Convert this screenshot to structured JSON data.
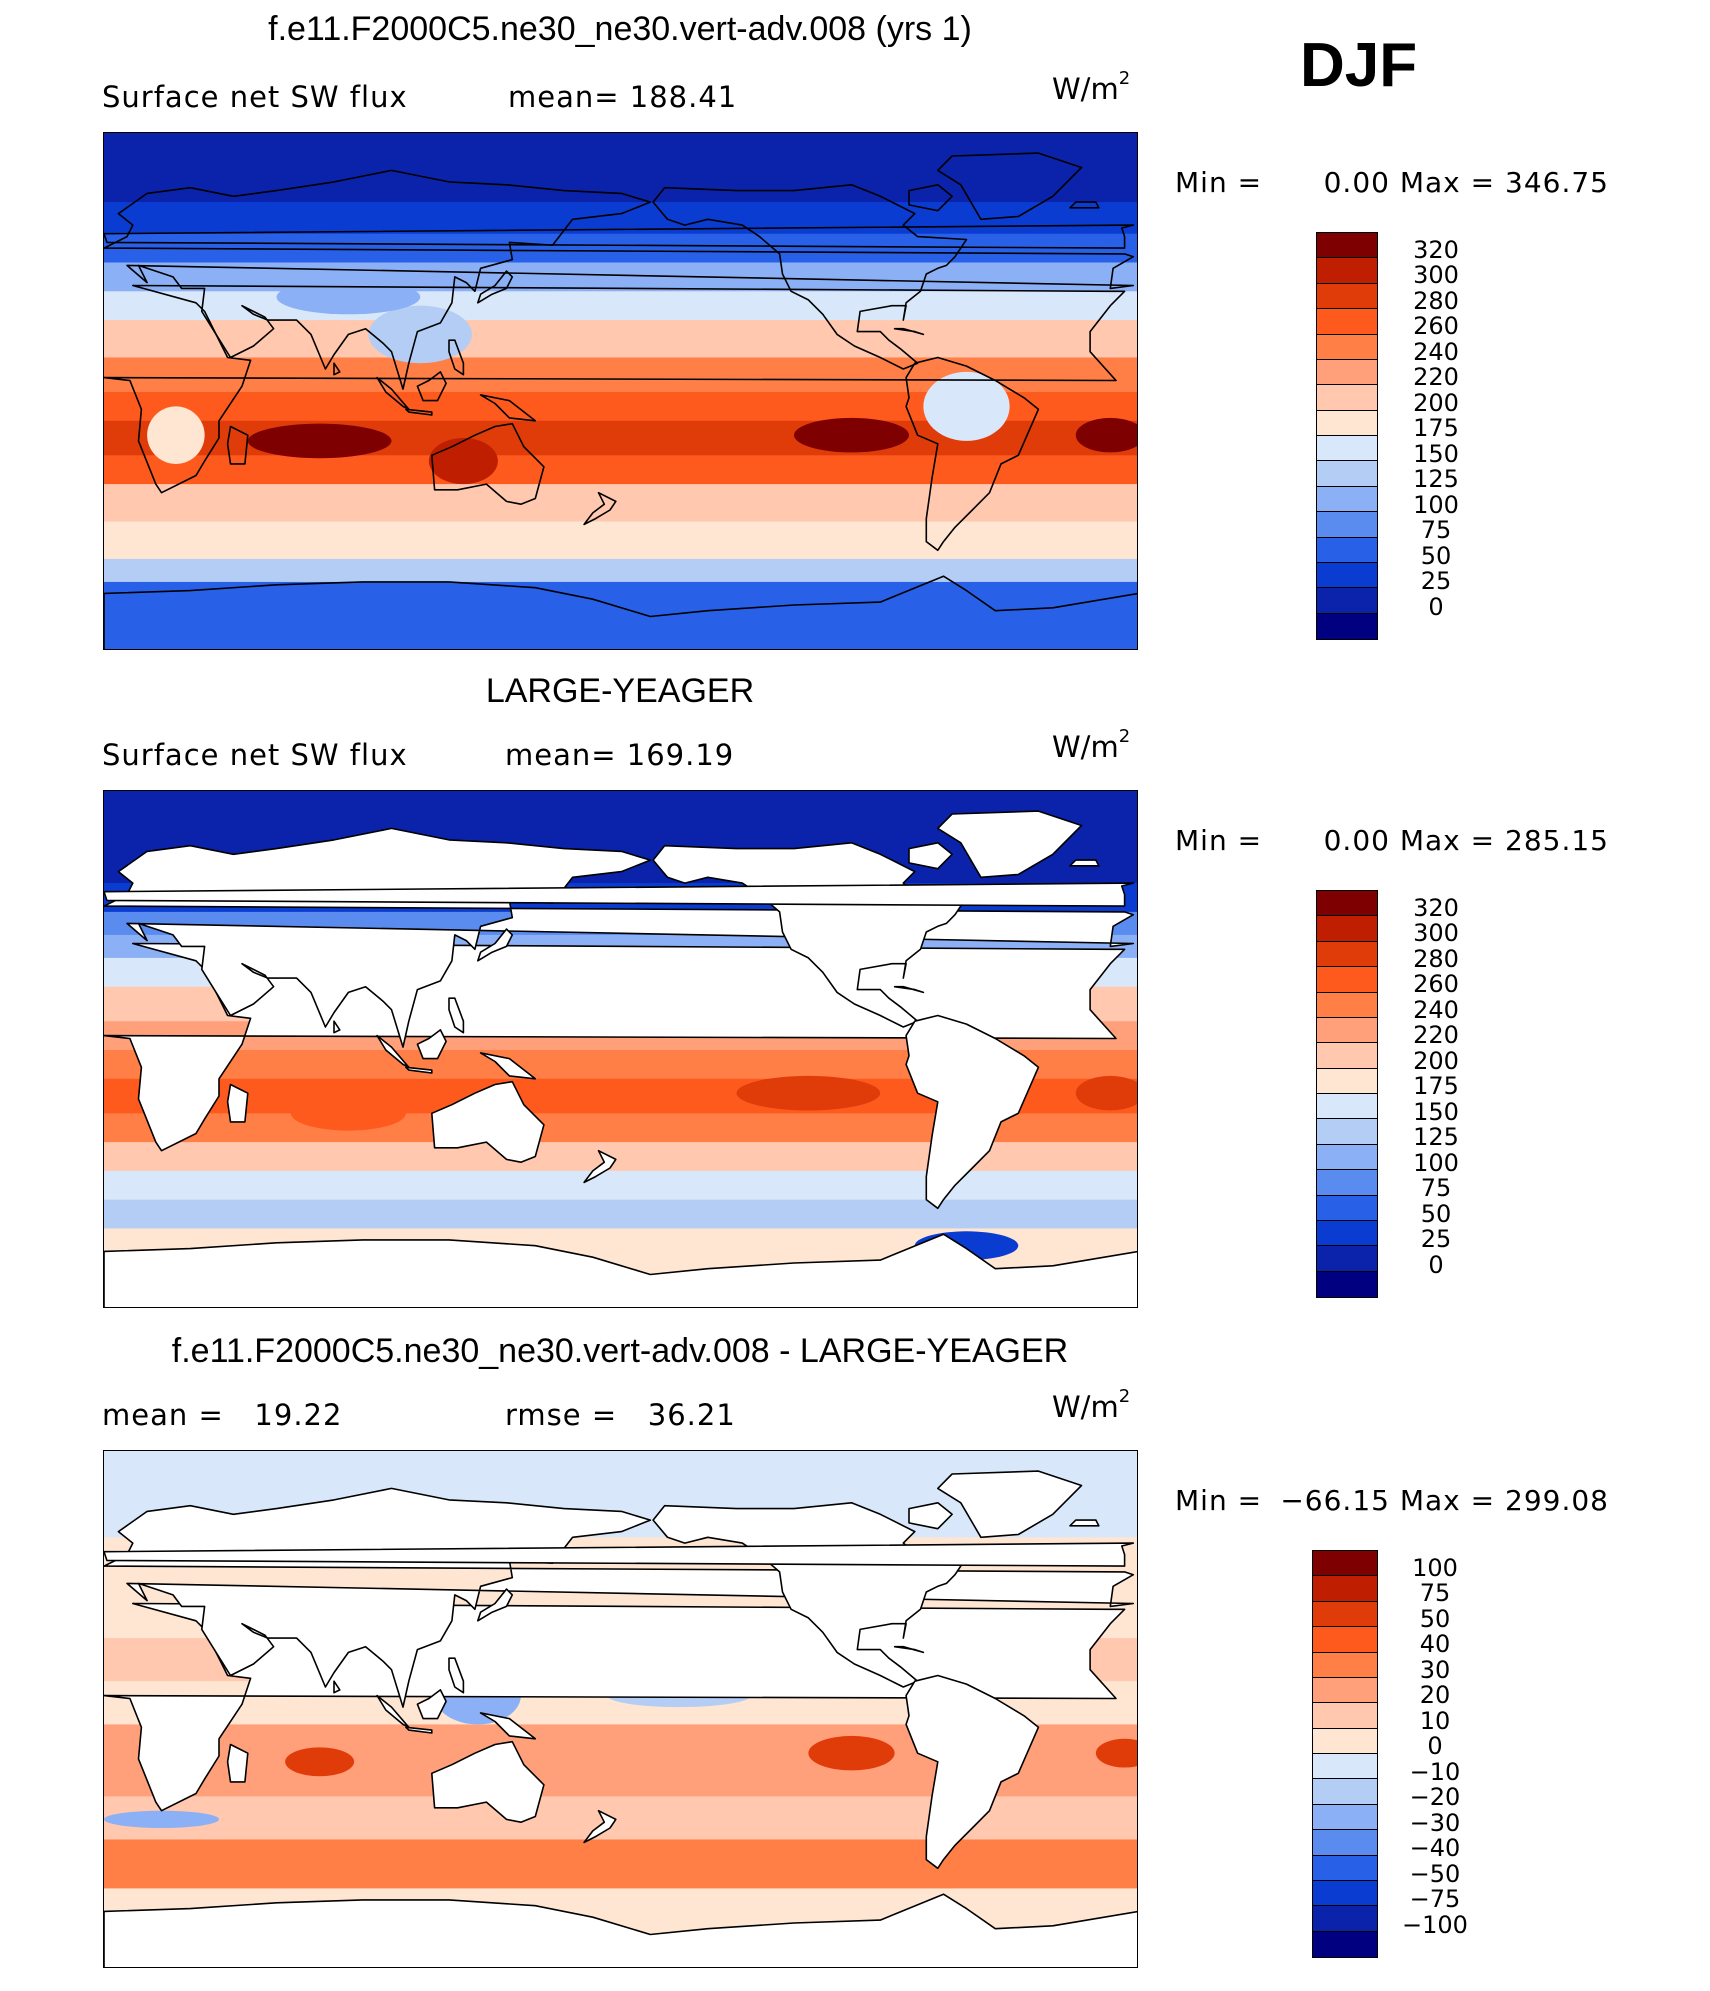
{
  "season": "DJF",
  "panels": [
    {
      "title": "f.e11.F2000C5.ne30_ne30.vert-adv.008 (yrs 1)",
      "left_label": "Surface net SW flux",
      "right_label": "mean= 188.41",
      "units": "W/m",
      "units_exp": "2",
      "min_label": "Min =",
      "min_value": "0.00",
      "max_label": "Max =",
      "max_value": "346.75",
      "land_masked": false,
      "colorbar": {
        "levels": [
          "320",
          "300",
          "280",
          "260",
          "240",
          "220",
          "200",
          "175",
          "150",
          "125",
          "100",
          "75",
          "50",
          "25",
          "0"
        ],
        "colors": [
          "#7f0000",
          "#bf1e00",
          "#e03c0a",
          "#ff5a1e",
          "#ff7f46",
          "#ffa07a",
          "#ffc8af",
          "#ffe6d2",
          "#d8e8fa",
          "#b4cdf5",
          "#8cb0f5",
          "#5a8cf0",
          "#2860e8",
          "#0a3cd2",
          "#0a23aa",
          "#000080"
        ]
      },
      "map_field": {
        "lat_bands": [
          {
            "lat_from": 90,
            "lat_to": 66,
            "value": 5
          },
          {
            "lat_from": 66,
            "lat_to": 55,
            "value": 30
          },
          {
            "lat_from": 55,
            "lat_to": 45,
            "value": 70
          },
          {
            "lat_from": 45,
            "lat_to": 35,
            "value": 110
          },
          {
            "lat_from": 35,
            "lat_to": 25,
            "value": 160
          },
          {
            "lat_from": 25,
            "lat_to": 12,
            "value": 215
          },
          {
            "lat_from": 12,
            "lat_to": 0,
            "value": 250
          },
          {
            "lat_from": 0,
            "lat_to": -10,
            "value": 275
          },
          {
            "lat_from": -10,
            "lat_to": -22,
            "value": 290
          },
          {
            "lat_from": -22,
            "lat_to": -32,
            "value": 265
          },
          {
            "lat_from": -32,
            "lat_to": -45,
            "value": 215
          },
          {
            "lat_from": -45,
            "lat_to": -58,
            "value": 185
          },
          {
            "lat_from": -58,
            "lat_to": -66,
            "value": 140
          },
          {
            "lat_from": -66,
            "lat_to": -90,
            "value": 55
          }
        ],
        "blobs": [
          {
            "lon": 75,
            "lat": -17,
            "rx": 25,
            "ry": 6,
            "value": 320
          },
          {
            "lon": 260,
            "lat": -15,
            "rx": 20,
            "ry": 6,
            "value": 325
          },
          {
            "lon": 350,
            "lat": -15,
            "rx": 12,
            "ry": 6,
            "value": 320
          },
          {
            "lon": 125,
            "lat": -24,
            "rx": 12,
            "ry": 8,
            "value": 305
          },
          {
            "lon": 25,
            "lat": -15,
            "rx": 10,
            "ry": 10,
            "value": 180
          },
          {
            "lon": 300,
            "lat": -5,
            "rx": 15,
            "ry": 12,
            "value": 150
          },
          {
            "lon": 110,
            "lat": 20,
            "rx": 18,
            "ry": 10,
            "value": 140
          },
          {
            "lon": 85,
            "lat": 33,
            "rx": 25,
            "ry": 6,
            "value": 120
          }
        ]
      }
    },
    {
      "title": "LARGE-YEAGER",
      "left_label": "Surface net SW flux",
      "right_label": "mean= 169.19",
      "units": "W/m",
      "units_exp": "2",
      "min_label": "Min =",
      "min_value": "0.00",
      "max_label": "Max =",
      "max_value": "285.15",
      "land_masked": true,
      "colorbar": {
        "levels": [
          "320",
          "300",
          "280",
          "260",
          "240",
          "220",
          "200",
          "175",
          "150",
          "125",
          "100",
          "75",
          "50",
          "25",
          "0"
        ],
        "colors": [
          "#7f0000",
          "#bf1e00",
          "#e03c0a",
          "#ff5a1e",
          "#ff7f46",
          "#ffa07a",
          "#ffc8af",
          "#ffe6d2",
          "#d8e8fa",
          "#b4cdf5",
          "#8cb0f5",
          "#5a8cf0",
          "#2860e8",
          "#0a3cd2",
          "#0a23aa",
          "#000080"
        ]
      },
      "map_field": {
        "lat_bands": [
          {
            "lat_from": 90,
            "lat_to": 58,
            "value": 5
          },
          {
            "lat_from": 58,
            "lat_to": 48,
            "value": 35
          },
          {
            "lat_from": 48,
            "lat_to": 40,
            "value": 80
          },
          {
            "lat_from": 40,
            "lat_to": 32,
            "value": 120
          },
          {
            "lat_from": 32,
            "lat_to": 22,
            "value": 165
          },
          {
            "lat_from": 22,
            "lat_to": 10,
            "value": 205
          },
          {
            "lat_from": 10,
            "lat_to": 0,
            "value": 230
          },
          {
            "lat_from": 0,
            "lat_to": -10,
            "value": 245
          },
          {
            "lat_from": -10,
            "lat_to": -22,
            "value": 262
          },
          {
            "lat_from": -22,
            "lat_to": -32,
            "value": 250
          },
          {
            "lat_from": -32,
            "lat_to": -42,
            "value": 205
          },
          {
            "lat_from": -42,
            "lat_to": -52,
            "value": 160
          },
          {
            "lat_from": -52,
            "lat_to": -62,
            "value": 130
          },
          {
            "lat_from": -62,
            "lat_to": -90,
            "value": 180
          }
        ],
        "blobs": [
          {
            "lon": 245,
            "lat": -15,
            "rx": 25,
            "ry": 6,
            "value": 285
          },
          {
            "lon": 350,
            "lat": -15,
            "rx": 12,
            "ry": 6,
            "value": 282
          },
          {
            "lon": 85,
            "lat": -22,
            "rx": 20,
            "ry": 6,
            "value": 272
          },
          {
            "lon": 300,
            "lat": -68,
            "rx": 18,
            "ry": 5,
            "value": 30
          }
        ]
      }
    },
    {
      "title": "f.e11.F2000C5.ne30_ne30.vert-adv.008 - LARGE-YEAGER",
      "left_label": "mean =   19.22",
      "right_label": "rmse =   36.21",
      "units": "W/m",
      "units_exp": "2",
      "min_label": "Min =",
      "min_value": "−66.15",
      "max_label": "Max =",
      "max_value": "299.08",
      "land_masked": true,
      "colorbar": {
        "levels": [
          "100",
          "75",
          "50",
          "40",
          "30",
          "20",
          "10",
          "0",
          "−10",
          "−20",
          "−30",
          "−40",
          "−50",
          "−75",
          "−100"
        ],
        "colors": [
          "#7f0000",
          "#bf1e00",
          "#e03c0a",
          "#ff5a1e",
          "#ff7f46",
          "#ffa07a",
          "#ffc8af",
          "#ffe6d2",
          "#d8e8fa",
          "#b4cdf5",
          "#8cb0f5",
          "#5a8cf0",
          "#2860e8",
          "#0a3cd2",
          "#0a23aa",
          "#000080"
        ]
      },
      "map_field": {
        "lat_bands": [
          {
            "lat_from": 90,
            "lat_to": 60,
            "value": -3
          },
          {
            "lat_from": 60,
            "lat_to": 40,
            "value": 3
          },
          {
            "lat_from": 40,
            "lat_to": 25,
            "value": 8
          },
          {
            "lat_from": 25,
            "lat_to": 10,
            "value": 15
          },
          {
            "lat_from": 10,
            "lat_to": -5,
            "value": 5
          },
          {
            "lat_from": -5,
            "lat_to": -30,
            "value": 28
          },
          {
            "lat_from": -30,
            "lat_to": -45,
            "value": 14
          },
          {
            "lat_from": -45,
            "lat_to": -62,
            "value": 38
          },
          {
            "lat_from": -62,
            "lat_to": -90,
            "value": 0
          }
        ],
        "blobs": [
          {
            "lon": 130,
            "lat": 5,
            "rx": 15,
            "ry": 10,
            "value": -25
          },
          {
            "lon": 200,
            "lat": 5,
            "rx": 25,
            "ry": 4,
            "value": -15
          },
          {
            "lon": 260,
            "lat": -15,
            "rx": 15,
            "ry": 6,
            "value": 55
          },
          {
            "lon": 75,
            "lat": -18,
            "rx": 12,
            "ry": 5,
            "value": 50
          },
          {
            "lon": 355,
            "lat": -15,
            "rx": 10,
            "ry": 5,
            "value": 55
          },
          {
            "lon": 20,
            "lat": -38,
            "rx": 20,
            "ry": 3,
            "value": -25
          }
        ]
      }
    }
  ]
}
